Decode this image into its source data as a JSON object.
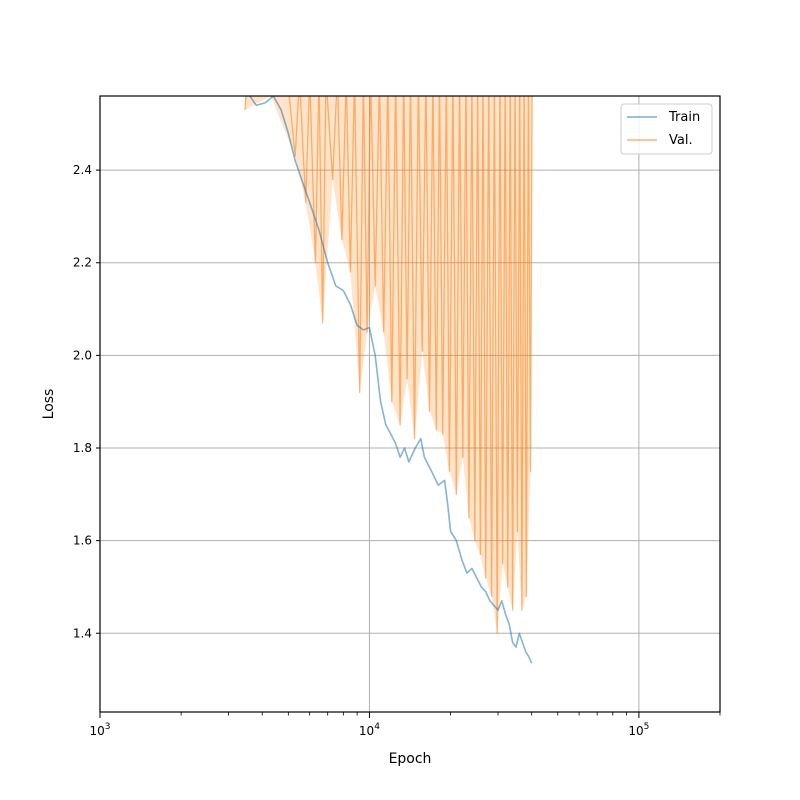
{
  "chart_data": {
    "type": "line",
    "title": "",
    "xlabel": "Epoch",
    "ylabel": "Loss",
    "xscale": "log",
    "xlim": [
      1000,
      200000
    ],
    "ylim": [
      1.23,
      2.56
    ],
    "grid": true,
    "legend_position": "top-right",
    "x_ticks": [
      {
        "value": 1000,
        "base": "10",
        "exp": "3"
      },
      {
        "value": 10000,
        "base": "10",
        "exp": "4"
      },
      {
        "value": 100000,
        "base": "10",
        "exp": "5"
      }
    ],
    "y_ticks": [
      "1.4",
      "1.6",
      "1.8",
      "2.0",
      "2.2",
      "2.4"
    ],
    "series": [
      {
        "name": "Train",
        "color": "#1f77b4",
        "points": [
          [
            3400,
            2.58
          ],
          [
            3600,
            2.56
          ],
          [
            3800,
            2.54
          ],
          [
            4100,
            2.545
          ],
          [
            4400,
            2.56
          ],
          [
            4700,
            2.53
          ],
          [
            5000,
            2.48
          ],
          [
            5300,
            2.42
          ],
          [
            5600,
            2.38
          ],
          [
            6000,
            2.33
          ],
          [
            6500,
            2.27
          ],
          [
            7000,
            2.2
          ],
          [
            7500,
            2.15
          ],
          [
            8000,
            2.14
          ],
          [
            8500,
            2.11
          ],
          [
            9000,
            2.065
          ],
          [
            9500,
            2.055
          ],
          [
            10000,
            2.06
          ],
          [
            10500,
            2.0
          ],
          [
            11000,
            1.9
          ],
          [
            11500,
            1.85
          ],
          [
            12000,
            1.83
          ],
          [
            12500,
            1.81
          ],
          [
            13000,
            1.78
          ],
          [
            13500,
            1.8
          ],
          [
            14000,
            1.77
          ],
          [
            14800,
            1.8
          ],
          [
            15500,
            1.82
          ],
          [
            16000,
            1.78
          ],
          [
            17000,
            1.75
          ],
          [
            18000,
            1.72
          ],
          [
            19000,
            1.73
          ],
          [
            19500,
            1.68
          ],
          [
            20000,
            1.62
          ],
          [
            21000,
            1.6
          ],
          [
            22000,
            1.56
          ],
          [
            23000,
            1.53
          ],
          [
            24000,
            1.54
          ],
          [
            25000,
            1.52
          ],
          [
            26000,
            1.5
          ],
          [
            27000,
            1.49
          ],
          [
            28000,
            1.47
          ],
          [
            29000,
            1.46
          ],
          [
            30000,
            1.45
          ],
          [
            31000,
            1.47
          ],
          [
            32000,
            1.44
          ],
          [
            33000,
            1.42
          ],
          [
            34000,
            1.38
          ],
          [
            35000,
            1.37
          ],
          [
            36000,
            1.4
          ],
          [
            37000,
            1.38
          ],
          [
            38000,
            1.36
          ],
          [
            39000,
            1.35
          ],
          [
            40000,
            1.335
          ]
        ]
      },
      {
        "name": "Val.",
        "color": "#ff7f0e",
        "points": [
          [
            3450,
            2.53
          ],
          [
            3500,
            2.58
          ],
          [
            4300,
            2.58
          ],
          [
            5000,
            2.58
          ],
          [
            5300,
            2.43
          ],
          [
            5500,
            2.6
          ],
          [
            5800,
            2.33
          ],
          [
            6000,
            2.6
          ],
          [
            6300,
            2.2
          ],
          [
            6500,
            2.6
          ],
          [
            6700,
            2.07
          ],
          [
            6900,
            2.6
          ],
          [
            7300,
            2.38
          ],
          [
            7600,
            2.6
          ],
          [
            7900,
            2.25
          ],
          [
            8200,
            2.6
          ],
          [
            8500,
            2.18
          ],
          [
            8800,
            2.6
          ],
          [
            9200,
            1.92
          ],
          [
            9500,
            2.6
          ],
          [
            9800,
            2.05
          ],
          [
            10100,
            2.6
          ],
          [
            10500,
            2.15
          ],
          [
            10900,
            2.6
          ],
          [
            11300,
            2.05
          ],
          [
            11700,
            2.6
          ],
          [
            12100,
            1.9
          ],
          [
            12500,
            2.6
          ],
          [
            13000,
            1.85
          ],
          [
            13400,
            2.6
          ],
          [
            13800,
            1.95
          ],
          [
            14200,
            2.6
          ],
          [
            14700,
            1.82
          ],
          [
            15200,
            2.6
          ],
          [
            15700,
            2.01
          ],
          [
            16200,
            2.6
          ],
          [
            16700,
            1.88
          ],
          [
            17200,
            2.6
          ],
          [
            17700,
            1.84
          ],
          [
            18200,
            2.6
          ],
          [
            18700,
            1.83
          ],
          [
            19300,
            2.6
          ],
          [
            19800,
            1.75
          ],
          [
            20400,
            2.6
          ],
          [
            21000,
            1.7
          ],
          [
            21600,
            2.6
          ],
          [
            22200,
            1.78
          ],
          [
            22800,
            2.6
          ],
          [
            23400,
            1.65
          ],
          [
            24000,
            2.6
          ],
          [
            24600,
            1.6
          ],
          [
            25200,
            2.6
          ],
          [
            25800,
            1.57
          ],
          [
            26400,
            2.6
          ],
          [
            27000,
            1.52
          ],
          [
            27700,
            2.6
          ],
          [
            28400,
            1.48
          ],
          [
            29100,
            2.6
          ],
          [
            29800,
            1.4
          ],
          [
            30500,
            2.6
          ],
          [
            31200,
            1.55
          ],
          [
            31900,
            2.6
          ],
          [
            32600,
            1.5
          ],
          [
            33300,
            2.6
          ],
          [
            34000,
            1.45
          ],
          [
            34700,
            2.6
          ],
          [
            35400,
            1.62
          ],
          [
            36100,
            2.6
          ],
          [
            36800,
            1.45
          ],
          [
            37500,
            2.6
          ],
          [
            38200,
            1.48
          ],
          [
            38900,
            2.6
          ],
          [
            39600,
            1.75
          ],
          [
            40200,
            2.6
          ]
        ]
      }
    ]
  }
}
